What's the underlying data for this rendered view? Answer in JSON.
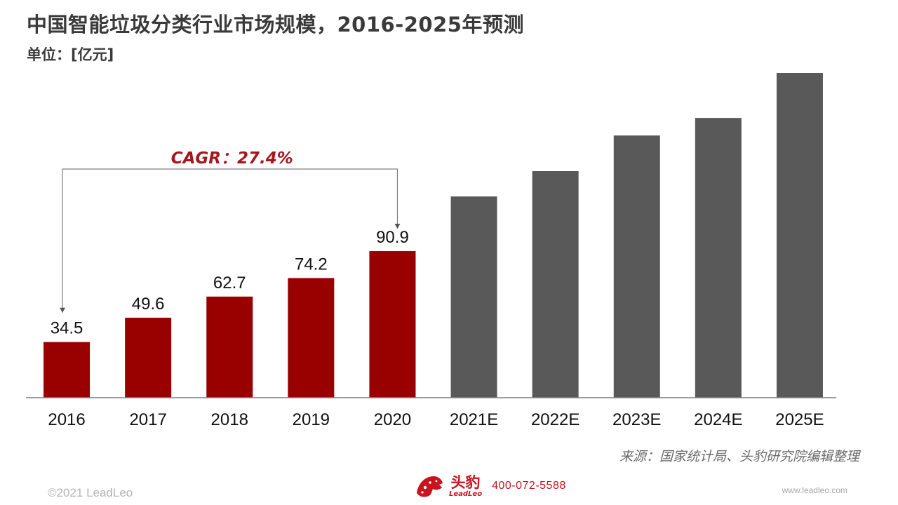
{
  "title": "中国智能垃圾分类行业市场规模，2016-2025年预测",
  "unit": "单位：[亿元]",
  "chart_data": {
    "type": "bar",
    "categories": [
      "2016",
      "2017",
      "2018",
      "2019",
      "2020",
      "2021E",
      "2022E",
      "2023E",
      "2024E",
      "2025E"
    ],
    "values": [
      34.5,
      49.6,
      62.7,
      74.2,
      90.9,
      124.8,
      140.5,
      162.6,
      173.5,
      201.4
    ],
    "labels": [
      "34.5",
      "49.6",
      "62.7",
      "74.2",
      "90.9",
      "",
      "",
      "",
      "",
      ""
    ],
    "bar_colors": [
      "#990000",
      "#990000",
      "#990000",
      "#990000",
      "#990000",
      "#595959",
      "#595959",
      "#595959",
      "#595959",
      "#595959"
    ],
    "ylim": [
      0,
      210
    ],
    "grid": false,
    "annotation": {
      "text": "CAGR：27.4%",
      "from_index": 0,
      "to_index": 4,
      "color": "#a5171d"
    }
  },
  "source": "来源：国家统计局、头豹研究院编辑整理",
  "copyright": "©2021 LeadLeo",
  "brand": {
    "name_cn": "头豹",
    "name_en": "LeadLeo",
    "phone": "400-072-5588"
  },
  "website": "www.leadleo.com"
}
